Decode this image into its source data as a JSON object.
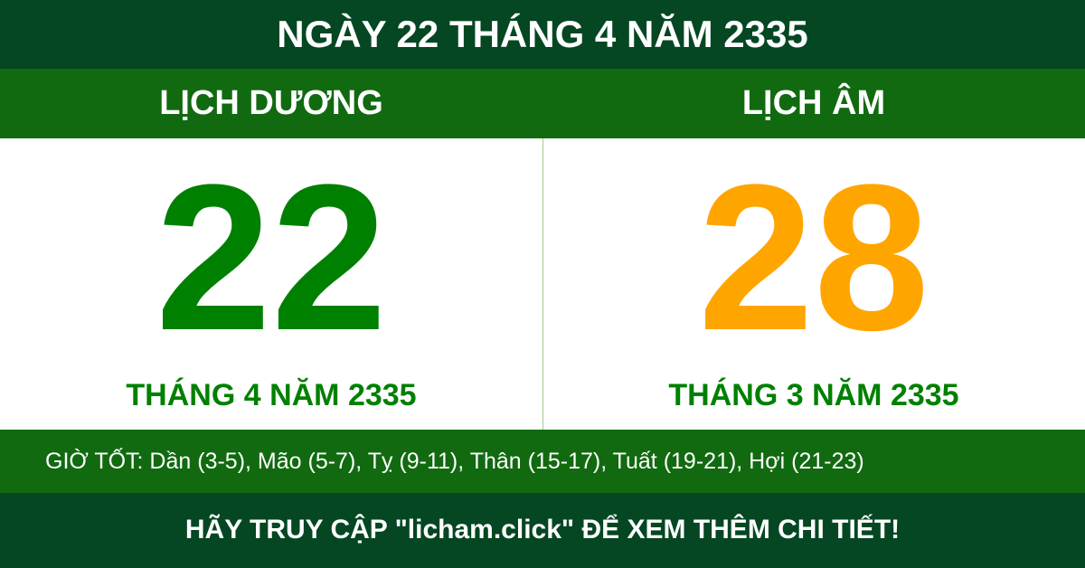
{
  "title": "NGÀY 22 THÁNG 4 NĂM 2335",
  "solar": {
    "label": "LỊCH DƯƠNG",
    "day": "22",
    "month_year": "THÁNG 4 NĂM 2335",
    "color": "#008000"
  },
  "lunar": {
    "label": "LỊCH ÂM",
    "day": "28",
    "month_year": "THÁNG 3 NĂM 2335",
    "color": "#ffa500"
  },
  "good_hours": "GIỜ TỐT: Dần (3-5), Mão (5-7), Tỵ (9-11), Thân (15-17), Tuất (19-21), Hợi (21-23)",
  "footer": "HÃY TRUY CẬP \"licham.click\" ĐỂ XEM THÊM CHI TIẾT!"
}
